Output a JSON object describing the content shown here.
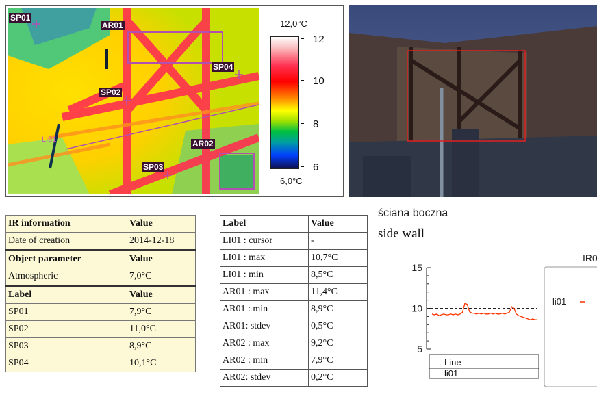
{
  "thermal": {
    "labels": {
      "sp01": "SP01",
      "ar01": "AR01",
      "sp04": "SP04",
      "sp02": "SP02",
      "li01": "LI01",
      "ar02": "AR02",
      "sp03": "SP03"
    },
    "scale": {
      "max_label": "12,0°C",
      "min_label": "6,0°C",
      "ticks": [
        "12",
        "10",
        "8",
        "6"
      ]
    }
  },
  "ir_table": {
    "rows": [
      {
        "c1": "IR information",
        "c2": "Value",
        "header": true
      },
      {
        "c1": "Date of creation",
        "c2": "2014-12-18"
      },
      {
        "c1": "Object parameter",
        "c2": "Value",
        "header": true
      },
      {
        "c1": "Atmospheric",
        "c2": "7,0°C"
      },
      {
        "c1": "Label",
        "c2": "Value",
        "header": true
      },
      {
        "c1": "SP01",
        "c2": "7,9°C"
      },
      {
        "c1": "SP02",
        "c2": "11,0°C"
      },
      {
        "c1": "SP03",
        "c2": "8,9°C"
      },
      {
        "c1": "SP04",
        "c2": "10,1°C"
      }
    ]
  },
  "measure_table": {
    "rows": [
      {
        "c1": "Label",
        "c2": "Value",
        "header": true
      },
      {
        "c1": "LI01 : cursor",
        "c2": "-"
      },
      {
        "c1": "LI01 : max",
        "c2": "10,7°C"
      },
      {
        "c1": "LI01 : min",
        "c2": "8,5°C"
      },
      {
        "c1": "AR01 : max",
        "c2": "11,4°C"
      },
      {
        "c1": "AR01 : min",
        "c2": "8,9°C"
      },
      {
        "c1": "AR01: stdev",
        "c2": "0,5°C"
      },
      {
        "c1": "AR02 : max",
        "c2": "9,2°C"
      },
      {
        "c1": "AR02 : min",
        "c2": "7,9°C"
      },
      {
        "c1": "AR02: stdev",
        "c2": "0,2°C"
      }
    ]
  },
  "captions": {
    "polish": "ściana boczna",
    "english": "side wall"
  },
  "chart_data": {
    "type": "line",
    "title": "",
    "ylim": [
      5,
      15
    ],
    "yticks": [
      "15",
      "10",
      "5"
    ],
    "reference_line": 10,
    "series": [
      {
        "name": "li01",
        "color": "#ff3300",
        "values": [
          9.3,
          9.2,
          9.3,
          9.1,
          9.2,
          9.3,
          9.2,
          9.2,
          9.3,
          9.2,
          9.3,
          9.2,
          9.3,
          9.5,
          10.6,
          10.5,
          9.6,
          9.4,
          9.4,
          9.3,
          9.4,
          9.3,
          9.4,
          9.3,
          9.3,
          9.4,
          9.3,
          9.4,
          9.3,
          9.3,
          9.4,
          9.3,
          9.4,
          9.5,
          10.2,
          10.0,
          9.3,
          9.1,
          9.0,
          8.9,
          8.8,
          8.7,
          8.6,
          8.7,
          8.6,
          8.6
        ]
      }
    ],
    "legend": {
      "header": "Line",
      "item": "li01"
    },
    "right_panel": {
      "title": "IR0",
      "item": "li01"
    }
  }
}
